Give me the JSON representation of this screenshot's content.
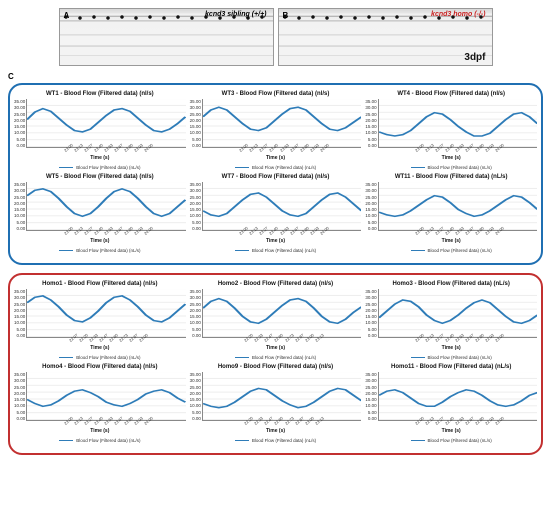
{
  "panelA": {
    "corner": "A",
    "label": "kcnd3 sibling (+/+)",
    "label_color": "#000000"
  },
  "panelB": {
    "corner": "B",
    "label": "kcnd3 homo (-/-)",
    "label_color": "#c81e1e",
    "bottom": "3dpf"
  },
  "panelC": "C",
  "chart_common": {
    "line_color": "#2e7cb8",
    "grid_color": "#e0e0e0",
    "axis_color": "#888888",
    "background": "#ffffff",
    "y_ticks": [
      "35.00",
      "30.00",
      "25.00",
      "20.00",
      "15.00",
      "10.00",
      "5.00",
      "0.00"
    ],
    "x_axis_label": "Time (s)",
    "title_fontsize": 6,
    "axis_fontsize": 5,
    "tick_fontsize": 4.5,
    "line_width": 1.5
  },
  "groups": [
    {
      "id": "wt",
      "border": "#1f6fb2",
      "legend": "Blood Flow (Filtered data) (nL/s)",
      "charts": [
        {
          "title": "WT1 - Blood Flow (Filtered data) (nl/s)",
          "x_ticks": [
            "23.00",
            "23.13",
            "23.27",
            "23.40",
            "23.53",
            "23.67",
            "23.80",
            "23.93",
            "24.00"
          ],
          "ylim": [
            0,
            35
          ],
          "xlim": [
            23.0,
            24.0
          ],
          "values": [
            20,
            25.5,
            28,
            26,
            21,
            16,
            12,
            11,
            13,
            18,
            23,
            27,
            28,
            26,
            21,
            16,
            12,
            11,
            13,
            17,
            22
          ]
        },
        {
          "title": "WT3 - Blood Flow (Filtered data) (nl/s)",
          "x_ticks": [
            "23.00",
            "23.13",
            "23.27",
            "23.40",
            "23.53",
            "23.67",
            "23.80",
            "23.93",
            "24.00"
          ],
          "ylim": [
            0,
            35
          ],
          "xlim": [
            23.0,
            24.0
          ],
          "values": [
            22,
            27,
            29,
            27,
            22,
            17,
            13,
            12,
            14,
            19,
            24,
            28,
            29,
            27,
            22,
            17,
            13,
            12,
            14,
            18,
            22
          ]
        },
        {
          "title": "WT4 - Blood Flow (Filtered data) (nl/s)",
          "x_ticks": [
            "23.00",
            "23.13",
            "23.27",
            "23.40",
            "23.53",
            "23.67",
            "23.80",
            "23.93",
            "24.00"
          ],
          "ylim": [
            0,
            35
          ],
          "xlim": [
            23.0,
            24.0
          ],
          "values": [
            11,
            9,
            8,
            9,
            12,
            17,
            22,
            25,
            24,
            20,
            15,
            11,
            8,
            8,
            10,
            15,
            20,
            24,
            25,
            22,
            17
          ]
        },
        {
          "title": "WT5 - Blood Flow (Filtered data) (nl/s)",
          "x_ticks": [
            "23.00",
            "23.13",
            "23.27",
            "23.40",
            "23.53",
            "23.67",
            "23.80",
            "23.93",
            "24.00"
          ],
          "ylim": [
            0,
            35
          ],
          "xlim": [
            23.0,
            24.0
          ],
          "values": [
            25,
            29,
            30,
            28,
            23,
            17,
            12,
            10,
            12,
            17,
            23,
            28,
            30,
            28,
            23,
            17,
            12,
            10,
            12,
            17,
            22
          ]
        },
        {
          "title": "WT7 - Blood Flow (Filtered data) (nl/s)",
          "x_ticks": [
            "23.00",
            "23.13",
            "23.27",
            "23.40",
            "23.53",
            "23.67",
            "23.80",
            "23.93",
            "24.00"
          ],
          "ylim": [
            0,
            35
          ],
          "xlim": [
            23.0,
            24.0
          ],
          "values": [
            14,
            11,
            10,
            12,
            17,
            22,
            26,
            27,
            24,
            19,
            14,
            11,
            10,
            12,
            17,
            22,
            26,
            27,
            24,
            19,
            14
          ]
        },
        {
          "title": "WT11 - Blood Flow (Filtered data) (nL/s)",
          "x_ticks": [
            "23.00",
            "23.13",
            "23.27",
            "23.40",
            "23.53",
            "23.67",
            "23.80",
            "23.93",
            "24.00"
          ],
          "ylim": [
            0,
            35
          ],
          "xlim": [
            23.0,
            24.0
          ],
          "values": [
            13,
            11,
            10,
            11,
            14,
            18,
            22,
            25,
            24,
            20,
            15,
            12,
            10,
            11,
            14,
            18,
            22,
            25,
            24,
            20,
            15
          ]
        }
      ]
    },
    {
      "id": "homo",
      "border": "#c23030",
      "legend": "Blood Flow (Filtered data) (nL/s)",
      "charts": [
        {
          "title": "Homo1 - Blood Flow (Filtered data) (nl/s)",
          "x_ticks": [
            "22.07",
            "22.20",
            "22.33",
            "22.47",
            "22.60",
            "22.73",
            "22.87",
            "23.00"
          ],
          "ylim": [
            0,
            35
          ],
          "xlim": [
            22.07,
            23.0
          ],
          "values": [
            25,
            29,
            30,
            27,
            22,
            16,
            12,
            11,
            14,
            19,
            25,
            29,
            30,
            27,
            22,
            16,
            12,
            11,
            14,
            19,
            24
          ]
        },
        {
          "title": "Homo2 - Blood Flow (Filtered data) (nl/s)",
          "x_ticks": [
            "22.20",
            "22.33",
            "22.47",
            "22.60",
            "22.73",
            "22.87",
            "23.00",
            "23.13"
          ],
          "ylim": [
            0,
            35
          ],
          "xlim": [
            22.2,
            23.13
          ],
          "values": [
            21,
            26,
            28,
            26,
            21,
            15,
            11,
            10,
            13,
            18,
            23,
            27,
            28,
            26,
            21,
            15,
            11,
            10,
            13,
            18,
            22
          ]
        },
        {
          "title": "Homo3 - Blood Flow (Filtered data) (nL/s)",
          "x_ticks": [
            "22.00",
            "22.13",
            "22.27",
            "22.40",
            "22.53",
            "22.67",
            "22.80",
            "22.93",
            "23.00"
          ],
          "ylim": [
            0,
            35
          ],
          "xlim": [
            22.0,
            23.0
          ],
          "values": [
            14,
            19,
            24,
            27,
            26,
            22,
            16,
            12,
            10,
            12,
            16,
            21,
            25,
            27,
            25,
            20,
            15,
            11,
            10,
            12,
            16
          ]
        },
        {
          "title": "Homo4 - Blood Flow (Filtered data) (nl/s)",
          "x_ticks": [
            "23.00",
            "23.13",
            "23.27",
            "23.40",
            "23.53",
            "23.67",
            "23.80",
            "23.93",
            "24.00"
          ],
          "ylim": [
            0,
            35
          ],
          "xlim": [
            23.0,
            24.0
          ],
          "values": [
            15,
            12,
            10,
            11,
            14,
            18,
            21,
            22,
            20,
            17,
            13,
            11,
            10,
            12,
            15,
            19,
            21,
            22,
            20,
            16,
            13
          ]
        },
        {
          "title": "Homo9 - Blood Flow (Filtered data) (nl/s)",
          "x_ticks": [
            "22.20",
            "22.33",
            "22.47",
            "22.60",
            "22.73",
            "22.87",
            "23.00",
            "23.13"
          ],
          "ylim": [
            0,
            35
          ],
          "xlim": [
            22.2,
            23.13
          ],
          "values": [
            12,
            10,
            9,
            10,
            13,
            17,
            21,
            23,
            22,
            18,
            14,
            11,
            9,
            10,
            13,
            17,
            21,
            23,
            22,
            18,
            14
          ]
        },
        {
          "title": "Homo11 - Blood Flow (Filtered data) (nL/s)",
          "x_ticks": [
            "22.00",
            "22.13",
            "22.27",
            "22.40",
            "22.53",
            "22.67",
            "22.80",
            "22.93",
            "23.00"
          ],
          "ylim": [
            0,
            35
          ],
          "xlim": [
            22.0,
            23.0
          ],
          "values": [
            18,
            21,
            22,
            20,
            16,
            12,
            10,
            10,
            13,
            17,
            20,
            22,
            21,
            18,
            14,
            11,
            10,
            11,
            14,
            18,
            20
          ]
        }
      ]
    }
  ]
}
